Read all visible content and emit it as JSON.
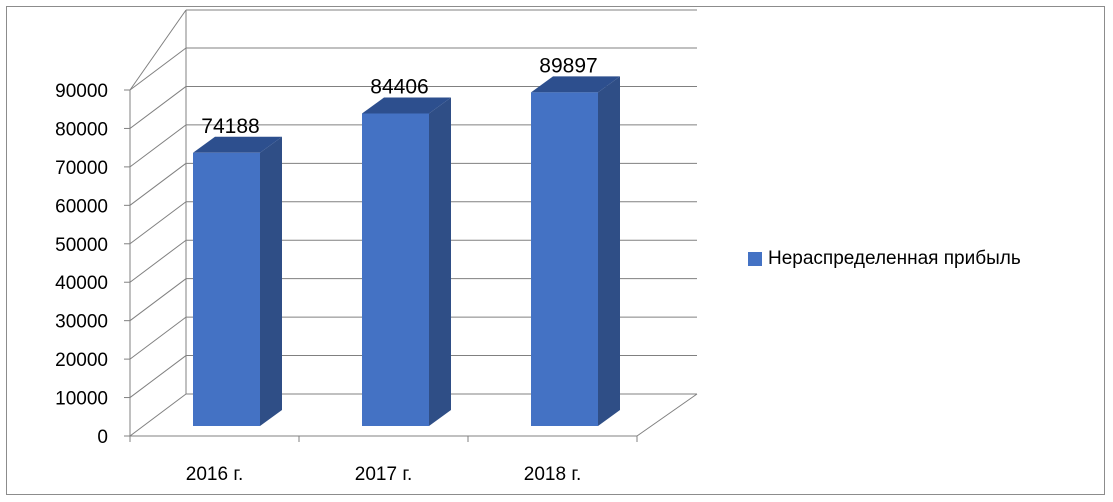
{
  "chart_data": {
    "type": "bar",
    "style": "3d-column",
    "categories": [
      "2016 г.",
      "2017 г.",
      "2018 г."
    ],
    "series": [
      {
        "name": "Нераспределенная прибыль",
        "values": [
          74188,
          84406,
          89897
        ]
      }
    ],
    "value_labels": [
      "74188",
      "84406",
      "89897"
    ],
    "ylim": [
      0,
      90000
    ],
    "yticks": [
      0,
      10000,
      20000,
      30000,
      40000,
      50000,
      60000,
      70000,
      80000,
      90000
    ],
    "ytick_labels": [
      "0",
      "10000",
      "20000",
      "30000",
      "40000",
      "50000",
      "60000",
      "70000",
      "80000",
      "90000"
    ],
    "grid": true,
    "legend_position": "right",
    "colors": {
      "bar_front": "#4472C4",
      "bar_side": "#2F4E86",
      "bar_top": "#2D4F8E",
      "grid": "#808080"
    }
  }
}
